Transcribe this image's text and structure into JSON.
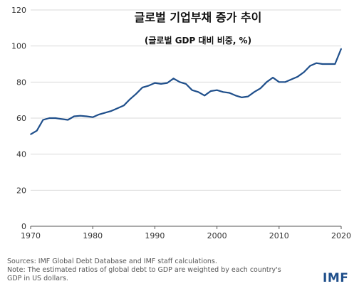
{
  "chart_data": {
    "type": "line",
    "title": "글로벌 기업부채 증가 추이",
    "subtitle": "(글로벌 GDP 대비 비중, %)",
    "xlim": [
      1970,
      2020
    ],
    "ylim": [
      0,
      120
    ],
    "x_ticks": [
      "1970",
      "1980",
      "1990",
      "2000",
      "2010",
      "2020"
    ],
    "y_ticks": [
      "0",
      "20",
      "40",
      "60",
      "80",
      "100",
      "120"
    ],
    "grid": "horizontal",
    "line_color": "#1f4f8b",
    "x": [
      1970,
      1971,
      1972,
      1973,
      1974,
      1975,
      1976,
      1977,
      1978,
      1979,
      1980,
      1981,
      1982,
      1983,
      1984,
      1985,
      1986,
      1987,
      1988,
      1989,
      1990,
      1991,
      1992,
      1993,
      1994,
      1995,
      1996,
      1997,
      1998,
      1999,
      2000,
      2001,
      2002,
      2003,
      2004,
      2005,
      2006,
      2007,
      2008,
      2009,
      2010,
      2011,
      2012,
      2013,
      2014,
      2015,
      2016,
      2017,
      2018,
      2019,
      2020
    ],
    "series": [
      {
        "values": [
          51,
          53,
          59,
          60,
          60,
          59.5,
          59,
          61,
          61.3,
          61,
          60.5,
          62,
          63,
          64,
          65.5,
          67,
          70.5,
          73.5,
          77,
          78,
          79.5,
          79,
          79.5,
          82,
          80,
          79,
          75.5,
          74.5,
          72.5,
          75,
          75.5,
          74.5,
          74,
          72.5,
          71.5,
          72,
          74.5,
          76.5,
          80,
          82.5,
          80,
          80,
          81.5,
          83,
          85.5,
          89,
          90.5,
          90,
          90,
          90,
          98.5
        ]
      }
    ]
  },
  "notes": {
    "line1": "Sources: IMF Global Debt Database and IMF staff calculations.",
    "line2": "Note: The estimated ratios of global debt to GDP are weighted by each country's",
    "line3": "GDP in US dollars."
  },
  "brand": "IMF"
}
